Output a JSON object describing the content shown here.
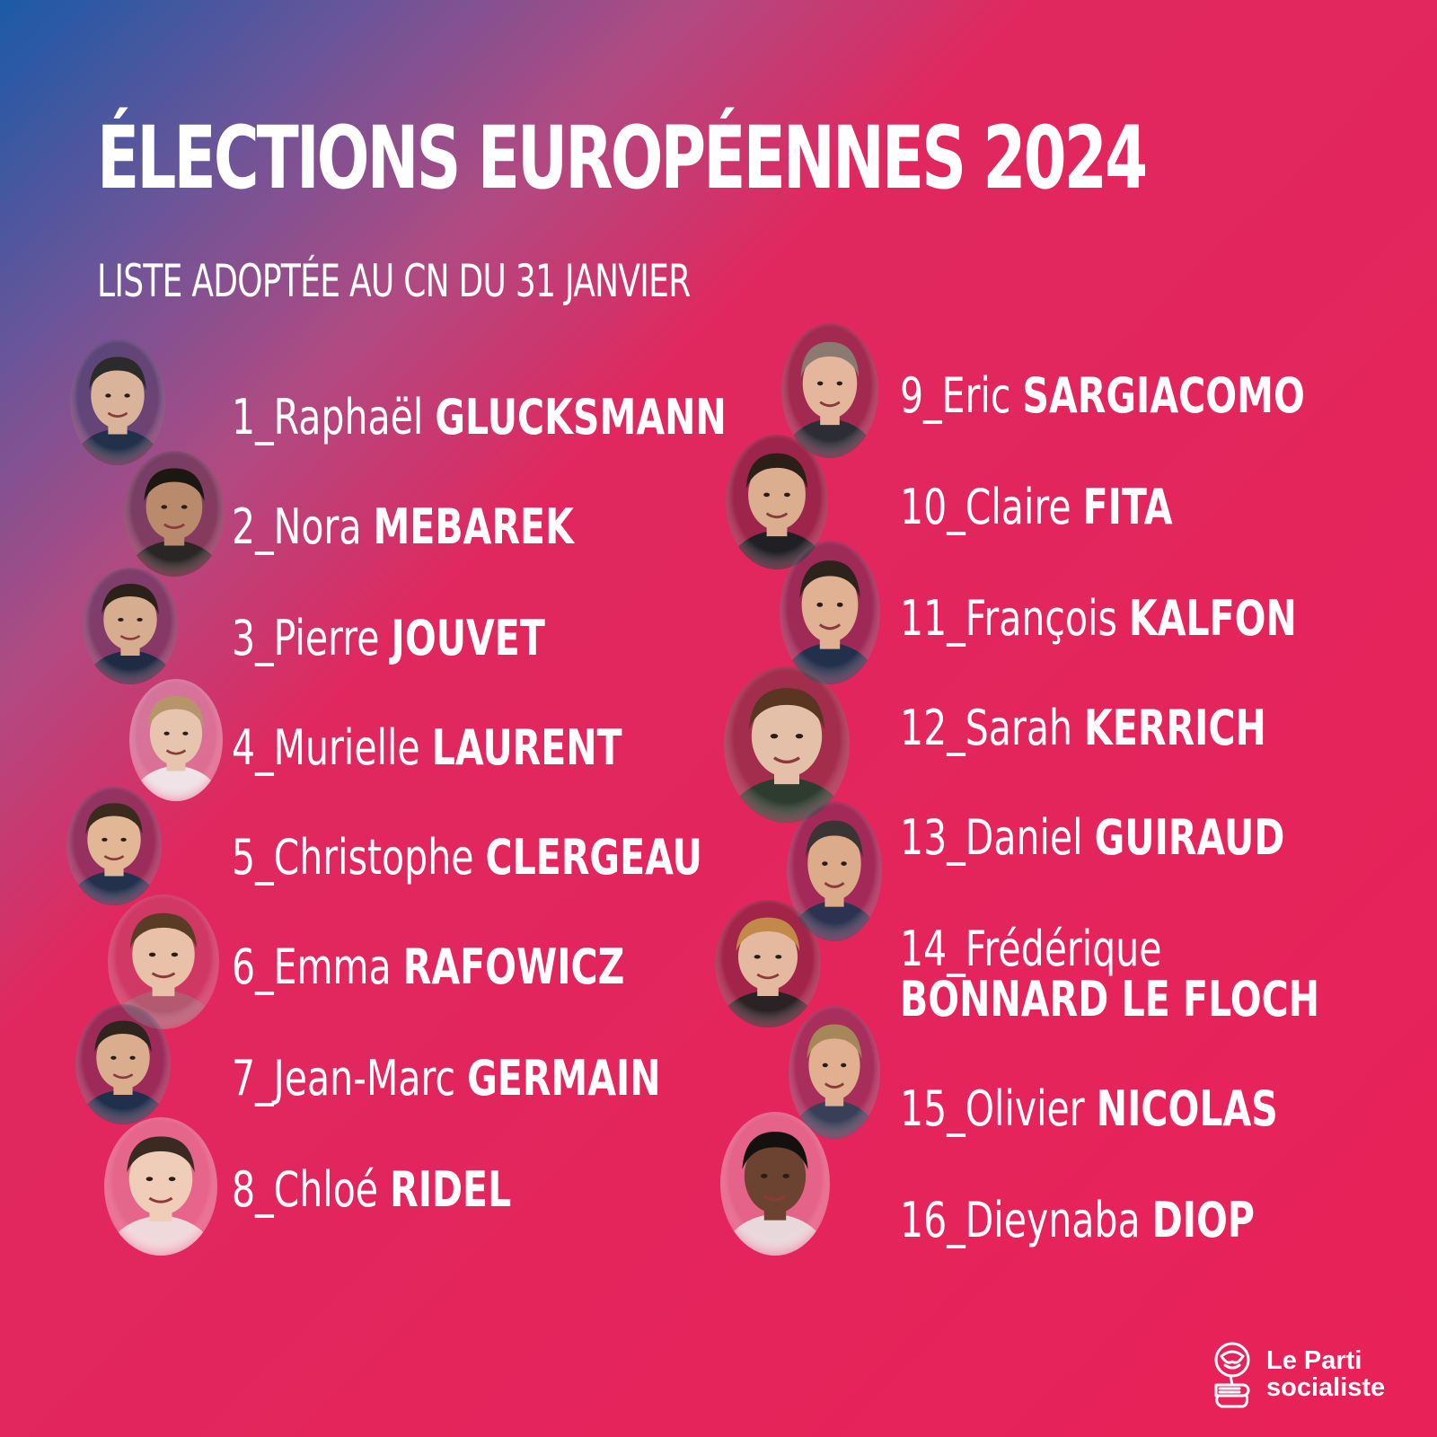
{
  "header": {
    "title": "ÉLECTIONS EUROPÉENNES 2024",
    "subtitle": "LISTE ADOPTÉE AU CN DU 31 JANVIER"
  },
  "candidates": [
    {
      "number": "1_",
      "first": "Raphaël",
      "last": "GLUCKSMANN"
    },
    {
      "number": "2_",
      "first": "Nora",
      "last": "MEBAREK"
    },
    {
      "number": "3_",
      "first": "Pierre",
      "last": "JOUVET"
    },
    {
      "number": "4_",
      "first": "Murielle",
      "last": "LAURENT"
    },
    {
      "number": "5_",
      "first": "Christophe",
      "last": "CLERGEAU"
    },
    {
      "number": "6_",
      "first": "Emma",
      "last": "RAFOWICZ"
    },
    {
      "number": "7_",
      "first": "Jean-Marc",
      "last": "GERMAIN"
    },
    {
      "number": "8_",
      "first": "Chloé",
      "last": "RIDEL"
    },
    {
      "number": "9_",
      "first": "Eric",
      "last": "SARGIACOMO"
    },
    {
      "number": "10_",
      "first": "Claire",
      "last": "FITA"
    },
    {
      "number": "11_",
      "first": "François",
      "last": "KALFON"
    },
    {
      "number": "12_",
      "first": "Sarah",
      "last": "KERRICH"
    },
    {
      "number": "13_",
      "first": "Daniel",
      "last": "GUIRAUD"
    },
    {
      "number": "14_",
      "first": "Frédérique",
      "last": "BONNARD LE FLOCH"
    },
    {
      "number": "15_",
      "first": "Olivier",
      "last": "NICOLAS"
    },
    {
      "number": "16_",
      "first": "Dieynaba",
      "last": "DIOP"
    }
  ],
  "logo": {
    "line1": "Le Parti",
    "line2": "socialiste",
    "icon": "rose-fist-icon"
  },
  "colors": {
    "gradient_start": "#1b5aa8",
    "gradient_end": "#e82158",
    "text": "#ffffff"
  }
}
